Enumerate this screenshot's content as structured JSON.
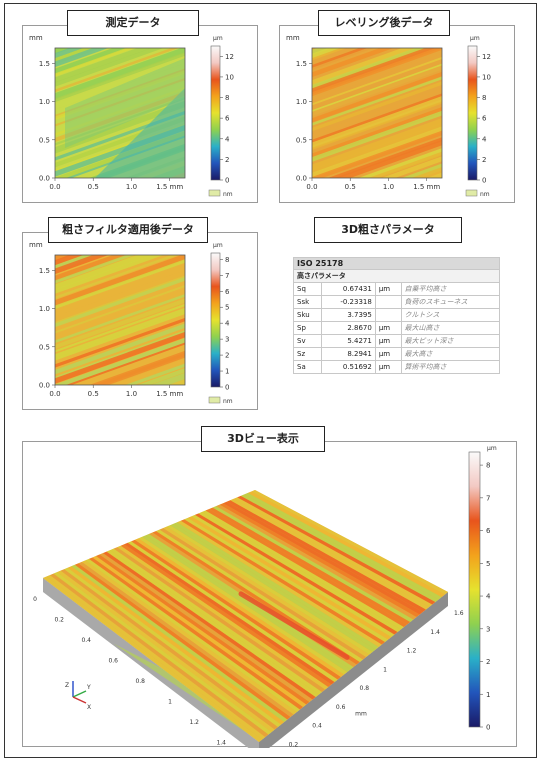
{
  "colors": {
    "scale": [
      "#1a1a66",
      "#2255bb",
      "#2ab0c8",
      "#8fd14f",
      "#e6e22e",
      "#f3a21c",
      "#e8541c",
      "#f3c9c3",
      "#fafafa"
    ]
  },
  "panels": {
    "measured": {
      "title": "測定データ"
    },
    "leveled": {
      "title": "レベリング後データ"
    },
    "filtered": {
      "title": "粗さフィルタ適用後データ"
    },
    "params": {
      "title": "3D粗さパラメータ"
    },
    "view3d": {
      "title": "3Dビュー表示"
    }
  },
  "params_table": {
    "standard": "ISO 25178",
    "group": "高さパラメータ",
    "rows": [
      {
        "name": "Sq",
        "value": "0.67431",
        "unit": "μm",
        "desc": "自乗平均高さ"
      },
      {
        "name": "Ssk",
        "value": "-0.23318",
        "unit": "",
        "desc": "負荷のスキューネス"
      },
      {
        "name": "Sku",
        "value": "3.7395",
        "unit": "",
        "desc": "クルトシス"
      },
      {
        "name": "Sp",
        "value": "2.8670",
        "unit": "μm",
        "desc": "最大山高さ"
      },
      {
        "name": "Sv",
        "value": "5.4271",
        "unit": "μm",
        "desc": "最大ピット深さ"
      },
      {
        "name": "Sz",
        "value": "8.2941",
        "unit": "μm",
        "desc": "最大高さ"
      },
      {
        "name": "Sa",
        "value": "0.51692",
        "unit": "μm",
        "desc": "算術平均高さ"
      }
    ]
  },
  "chart_data": [
    {
      "id": "measured",
      "type": "heatmap",
      "title": "測定データ",
      "x_unit": "mm",
      "y_unit": "mm",
      "xlim": [
        0,
        1.7
      ],
      "ylim": [
        0,
        1.7
      ],
      "x_ticks": [
        "0.0",
        "0.5",
        "1.0",
        "1.5 mm"
      ],
      "y_ticks": [
        "0.0",
        "0.5",
        "1.0",
        "1.5"
      ],
      "colorbar": {
        "unit": "μm",
        "min": 0,
        "max": 13,
        "ticks": [
          "0",
          "2",
          "4",
          "6",
          "8",
          "10",
          "12"
        ],
        "legend_label": "nm"
      }
    },
    {
      "id": "leveled",
      "type": "heatmap",
      "title": "レベリング後データ",
      "x_unit": "mm",
      "y_unit": "mm",
      "xlim": [
        0,
        1.7
      ],
      "ylim": [
        0,
        1.7
      ],
      "x_ticks": [
        "0.0",
        "0.5",
        "1.0",
        "1.5 mm"
      ],
      "y_ticks": [
        "0.0",
        "0.5",
        "1.0",
        "1.5"
      ],
      "colorbar": {
        "unit": "μm",
        "min": 0,
        "max": 13,
        "ticks": [
          "0",
          "2",
          "4",
          "6",
          "8",
          "10",
          "12"
        ],
        "legend_label": "nm"
      }
    },
    {
      "id": "filtered",
      "type": "heatmap",
      "title": "粗さフィルタ適用後データ",
      "x_unit": "mm",
      "y_unit": "mm",
      "xlim": [
        0,
        1.7
      ],
      "ylim": [
        0,
        1.7
      ],
      "x_ticks": [
        "0.0",
        "0.5",
        "1.0",
        "1.5 mm"
      ],
      "y_ticks": [
        "0.0",
        "0.5",
        "1.0",
        "1.5"
      ],
      "colorbar": {
        "unit": "μm",
        "min": 0,
        "max": 8.4,
        "ticks": [
          "0",
          "1",
          "2",
          "3",
          "4",
          "5",
          "6",
          "7",
          "8"
        ],
        "legend_label": "nm"
      }
    },
    {
      "id": "view3d",
      "type": "heatmap",
      "title": "3Dビュー表示",
      "colorbar": {
        "unit": "μm",
        "min": 0,
        "max": 8.4,
        "ticks": [
          "0",
          "1",
          "2",
          "3",
          "4",
          "5",
          "6",
          "7",
          "8"
        ]
      },
      "x_ticks": [
        "0",
        "0.2",
        "0.4",
        "0.6",
        "0.8",
        "1",
        "1.2",
        "1.4",
        "1.6"
      ],
      "y_ticks": [
        "0",
        "0.2",
        "0.4",
        "0.6",
        "0.8",
        "1",
        "1.2",
        "1.4",
        "1.6"
      ],
      "y_unit": "mm",
      "axes_gizmo": [
        "Z",
        "Y",
        "X"
      ]
    }
  ]
}
